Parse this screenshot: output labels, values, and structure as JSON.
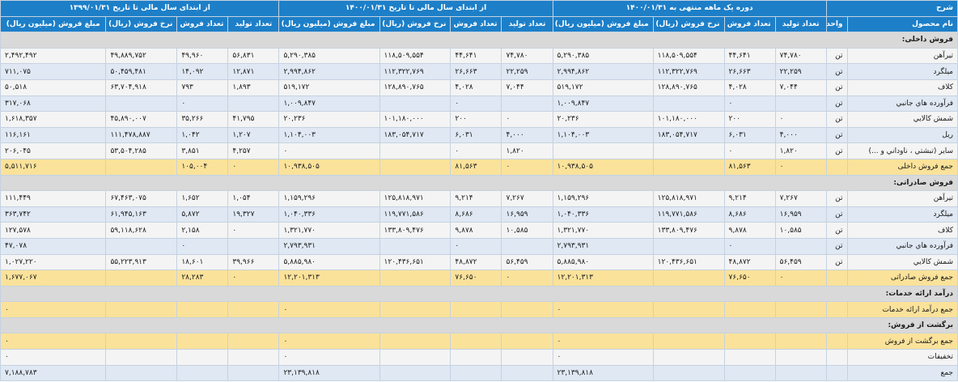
{
  "headers": {
    "desc": "شرح",
    "periods": [
      "دوره یک ماهه منتهی به ۱۴۰۰/۰۱/۳۱",
      "از ابتدای سال مالی تا تاریخ ۱۴۰۰/۰۱/۳۱",
      "از ابتدای سال مالی تا تاریخ ۱۳۹۹/۰۱/۳۱"
    ],
    "name": "نام محصول",
    "unit": "واحد",
    "cols": [
      "تعداد تولید",
      "تعداد فروش",
      "نرخ فروش (ریال)",
      "مبلغ فروش (میلیون ریال)"
    ]
  },
  "rows": [
    {
      "type": "section",
      "label": "فروش داخلی:"
    },
    {
      "type": "item",
      "name": "تیرآهن",
      "unit": "تن",
      "values": [
        "۷۴,۷۸۰",
        "۴۴,۶۴۱",
        "۱۱۸,۵۰۹,۵۵۴",
        "۵,۲۹۰,۳۸۵",
        "۷۴,۷۸۰",
        "۴۴,۶۴۱",
        "۱۱۸,۵۰۹,۵۵۴",
        "۵,۲۹۰,۳۸۵",
        "۵۶,۸۳۱",
        "۴۹,۹۶۰",
        "۴۹,۸۸۹,۷۵۲",
        "۲,۴۹۲,۴۹۲"
      ]
    },
    {
      "type": "item",
      "name": "میلگرد",
      "unit": "تن",
      "values": [
        "۲۲,۲۵۹",
        "۲۶,۶۶۳",
        "۱۱۲,۳۲۲,۷۶۹",
        "۲,۹۹۴,۸۶۲",
        "۲۲,۲۵۹",
        "۲۶,۶۶۳",
        "۱۱۲,۳۲۲,۷۶۹",
        "۲,۹۹۴,۸۶۲",
        "۱۲,۸۷۱",
        "۱۴,۰۹۲",
        "۵۰,۴۵۹,۴۸۱",
        "۷۱۱,۰۷۵"
      ]
    },
    {
      "type": "item",
      "name": "کلاف",
      "unit": "تن",
      "values": [
        "۷,۰۴۴",
        "۴,۰۲۸",
        "۱۲۸,۸۹۰,۷۶۵",
        "۵۱۹,۱۷۲",
        "۷,۰۴۴",
        "۴,۰۲۸",
        "۱۲۸,۸۹۰,۷۶۵",
        "۵۱۹,۱۷۲",
        "۱,۸۹۳",
        "۷۹۳",
        "۶۳,۷۰۴,۹۱۸",
        "۵۰,۵۱۸"
      ]
    },
    {
      "type": "item",
      "name": "فرآورده هاي جانبي",
      "unit": "تن",
      "values": [
        "",
        "۰",
        "",
        "۱,۰۰۹,۸۴۷",
        "",
        "۰",
        "",
        "۱,۰۰۹,۸۴۷",
        "",
        "۰",
        "",
        "۳۱۷,۰۶۸"
      ]
    },
    {
      "type": "item",
      "name": "شمش کالايي",
      "unit": "تن",
      "values": [
        "۰",
        "۲۰۰",
        "۱۰۱,۱۸۰,۰۰۰",
        "۲۰,۲۳۶",
        "۰",
        "۲۰۰",
        "۱۰۱,۱۸۰,۰۰۰",
        "۲۰,۲۳۶",
        "۴۱,۷۹۵",
        "۳۵,۲۶۶",
        "۴۵,۸۹۰,۰۰۷",
        "۱,۶۱۸,۳۵۷"
      ]
    },
    {
      "type": "item",
      "name": "ريل",
      "unit": "تن",
      "values": [
        "۴,۰۰۰",
        "۶,۰۳۱",
        "۱۸۳,۰۵۴,۷۱۷",
        "۱,۱۰۴,۰۰۳",
        "۴,۰۰۰",
        "۶,۰۳۱",
        "۱۸۳,۰۵۴,۷۱۷",
        "۱,۱۰۴,۰۰۳",
        "۱,۲۰۷",
        "۱,۰۴۲",
        "۱۱۱,۴۷۸,۸۸۷",
        "۱۱۶,۱۶۱"
      ]
    },
    {
      "type": "item",
      "name": "ساير (تبشتي ، ناوداني و ...)",
      "unit": "تن",
      "values": [
        "۱,۸۲۰",
        "۰",
        "",
        "",
        "۱,۸۲۰",
        "۰",
        "",
        "۰",
        "۴,۲۵۷",
        "۳,۸۵۱",
        "۵۳,۵۰۴,۲۸۵",
        "۲۰۶,۰۴۵"
      ]
    },
    {
      "type": "sum",
      "name": "جمع فروش داخلی",
      "values": [
        "۰",
        "۸۱,۵۶۳",
        "",
        "۱۰,۹۳۸,۵۰۵",
        "۰",
        "۸۱,۵۶۳",
        "",
        "۱۰,۹۳۸,۵۰۵",
        "۰",
        "۱۰۵,۰۰۴",
        "",
        "۵,۵۱۱,۷۱۶"
      ]
    },
    {
      "type": "section",
      "label": "فروش صادراتی:"
    },
    {
      "type": "item",
      "name": "تیرآهن",
      "unit": "تن",
      "values": [
        "۷,۲۶۷",
        "۹,۲۱۴",
        "۱۲۵,۸۱۸,۹۷۱",
        "۱,۱۵۹,۲۹۶",
        "۷,۲۶۷",
        "۹,۲۱۴",
        "۱۲۵,۸۱۸,۹۷۱",
        "۱,۱۵۹,۲۹۶",
        "۱,۰۵۴",
        "۱,۶۵۲",
        "۶۷,۴۶۳,۰۷۵",
        "۱۱۱,۴۴۹"
      ]
    },
    {
      "type": "item",
      "name": "میلگرد",
      "unit": "تن",
      "values": [
        "۱۶,۹۵۹",
        "۸,۶۸۶",
        "۱۱۹,۷۷۱,۵۸۶",
        "۱,۰۴۰,۳۳۶",
        "۱۶,۹۵۹",
        "۸,۶۸۶",
        "۱۱۹,۷۷۱,۵۸۶",
        "۱,۰۴۰,۳۳۶",
        "۱۹,۳۲۷",
        "۵,۸۷۲",
        "۶۱,۹۴۵,۱۶۳",
        "۳۶۳,۷۴۲"
      ]
    },
    {
      "type": "item",
      "name": "کلاف",
      "unit": "تن",
      "values": [
        "۱۰,۵۸۵",
        "۹,۸۷۸",
        "۱۳۳,۸۰۹,۴۷۶",
        "۱,۳۲۱,۷۷۰",
        "۱۰,۵۸۵",
        "۹,۸۷۸",
        "۱۳۳,۸۰۹,۴۷۶",
        "۱,۳۲۱,۷۷۰",
        "۰",
        "۲,۱۵۸",
        "۵۹,۱۱۸,۶۲۸",
        "۱۲۷,۵۷۸"
      ]
    },
    {
      "type": "item",
      "name": "فرآورده هاي جانبي",
      "unit": "تن",
      "values": [
        "",
        "۰",
        "",
        "۲,۷۹۳,۹۳۱",
        "",
        "۰",
        "",
        "۲,۷۹۳,۹۳۱",
        "",
        "۰",
        "",
        "۴۷,۰۷۸"
      ]
    },
    {
      "type": "item",
      "name": "شمش کالايي",
      "unit": "تن",
      "values": [
        "۵۶,۴۵۹",
        "۴۸,۸۷۲",
        "۱۲۰,۴۳۶,۶۵۱",
        "۵,۸۸۵,۹۸۰",
        "۵۶,۴۵۹",
        "۴۸,۸۷۲",
        "۱۲۰,۴۳۶,۶۵۱",
        "۵,۸۸۵,۹۸۰",
        "۳۹,۹۶۶",
        "۱۸,۶۰۱",
        "۵۵,۲۲۳,۹۱۳",
        "۱,۰۲۷,۲۲۰"
      ]
    },
    {
      "type": "sum",
      "name": "جمع فروش صادراتی",
      "values": [
        "۰",
        "۷۶,۶۵۰",
        "",
        "۱۲,۲۰۱,۳۱۳",
        "۰",
        "۷۶,۶۵۰",
        "",
        "۱۲,۲۰۱,۳۱۳",
        "۰",
        "۲۸,۲۸۳",
        "",
        "۱,۶۷۷,۰۶۷"
      ]
    },
    {
      "type": "section",
      "label": "درآمد ارائه خدمات:"
    },
    {
      "type": "sum",
      "name": "جمع درآمد ارائه خدمات",
      "values": [
        "",
        "",
        "",
        "۰",
        "",
        "",
        "",
        "۰",
        "",
        "",
        "",
        "۰"
      ]
    },
    {
      "type": "section",
      "label": "برگشت از فروش:"
    },
    {
      "type": "sum",
      "name": "جمع برگشت از فروش",
      "values": [
        "",
        "",
        "",
        "۰",
        "",
        "",
        "",
        "۰",
        "",
        "",
        "",
        "۰"
      ]
    },
    {
      "type": "item",
      "name": "تخفیفات",
      "unit": "",
      "values": [
        "",
        "",
        "",
        "۰",
        "",
        "",
        "",
        "۰",
        "",
        "",
        "",
        "۰"
      ]
    },
    {
      "type": "item",
      "name": "جمع",
      "unit": "",
      "values": [
        "",
        "",
        "",
        "۲۳,۱۳۹,۸۱۸",
        "",
        "",
        "",
        "۲۳,۱۳۹,۸۱۸",
        "",
        "",
        "",
        "۷,۱۸۸,۷۸۳"
      ]
    }
  ]
}
